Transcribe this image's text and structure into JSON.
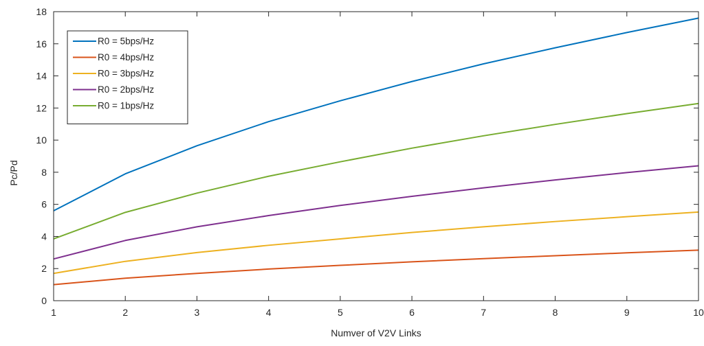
{
  "chart_data": {
    "type": "line",
    "title": "",
    "xlabel": "Numver of V2V Links",
    "ylabel": "Pc/Pd",
    "xlim": [
      1,
      10
    ],
    "ylim": [
      0,
      18
    ],
    "x_ticks": [
      1,
      2,
      3,
      4,
      5,
      6,
      7,
      8,
      9,
      10
    ],
    "y_ticks": [
      0,
      2,
      4,
      6,
      8,
      10,
      12,
      14,
      16,
      18
    ],
    "grid": false,
    "legend_position": "top-left",
    "x": [
      1,
      2,
      3,
      4,
      5,
      6,
      7,
      8,
      9,
      10
    ],
    "series": [
      {
        "name": "R0 = 5bps/Hz",
        "color": "#0072BD",
        "values": [
          5.6,
          7.9,
          9.65,
          11.15,
          12.45,
          13.65,
          14.75,
          15.75,
          16.7,
          17.6
        ]
      },
      {
        "name": "R0 = 4bps/Hz",
        "color": "#D95319",
        "values": [
          1.0,
          1.4,
          1.7,
          1.97,
          2.2,
          2.42,
          2.62,
          2.8,
          2.98,
          3.15
        ]
      },
      {
        "name": "R0 = 3bps/Hz",
        "color": "#EDB120",
        "values": [
          1.7,
          2.45,
          3.0,
          3.45,
          3.85,
          4.25,
          4.6,
          4.93,
          5.23,
          5.52
        ]
      },
      {
        "name": "R0 = 2bps/Hz",
        "color": "#7E2F8E",
        "values": [
          2.6,
          3.75,
          4.6,
          5.3,
          5.93,
          6.5,
          7.03,
          7.52,
          7.98,
          8.4
        ]
      },
      {
        "name": "R0 = 1bps/Hz",
        "color": "#77AC30",
        "values": [
          3.85,
          5.5,
          6.7,
          7.75,
          8.65,
          9.5,
          10.27,
          10.98,
          11.65,
          12.28
        ]
      }
    ]
  }
}
